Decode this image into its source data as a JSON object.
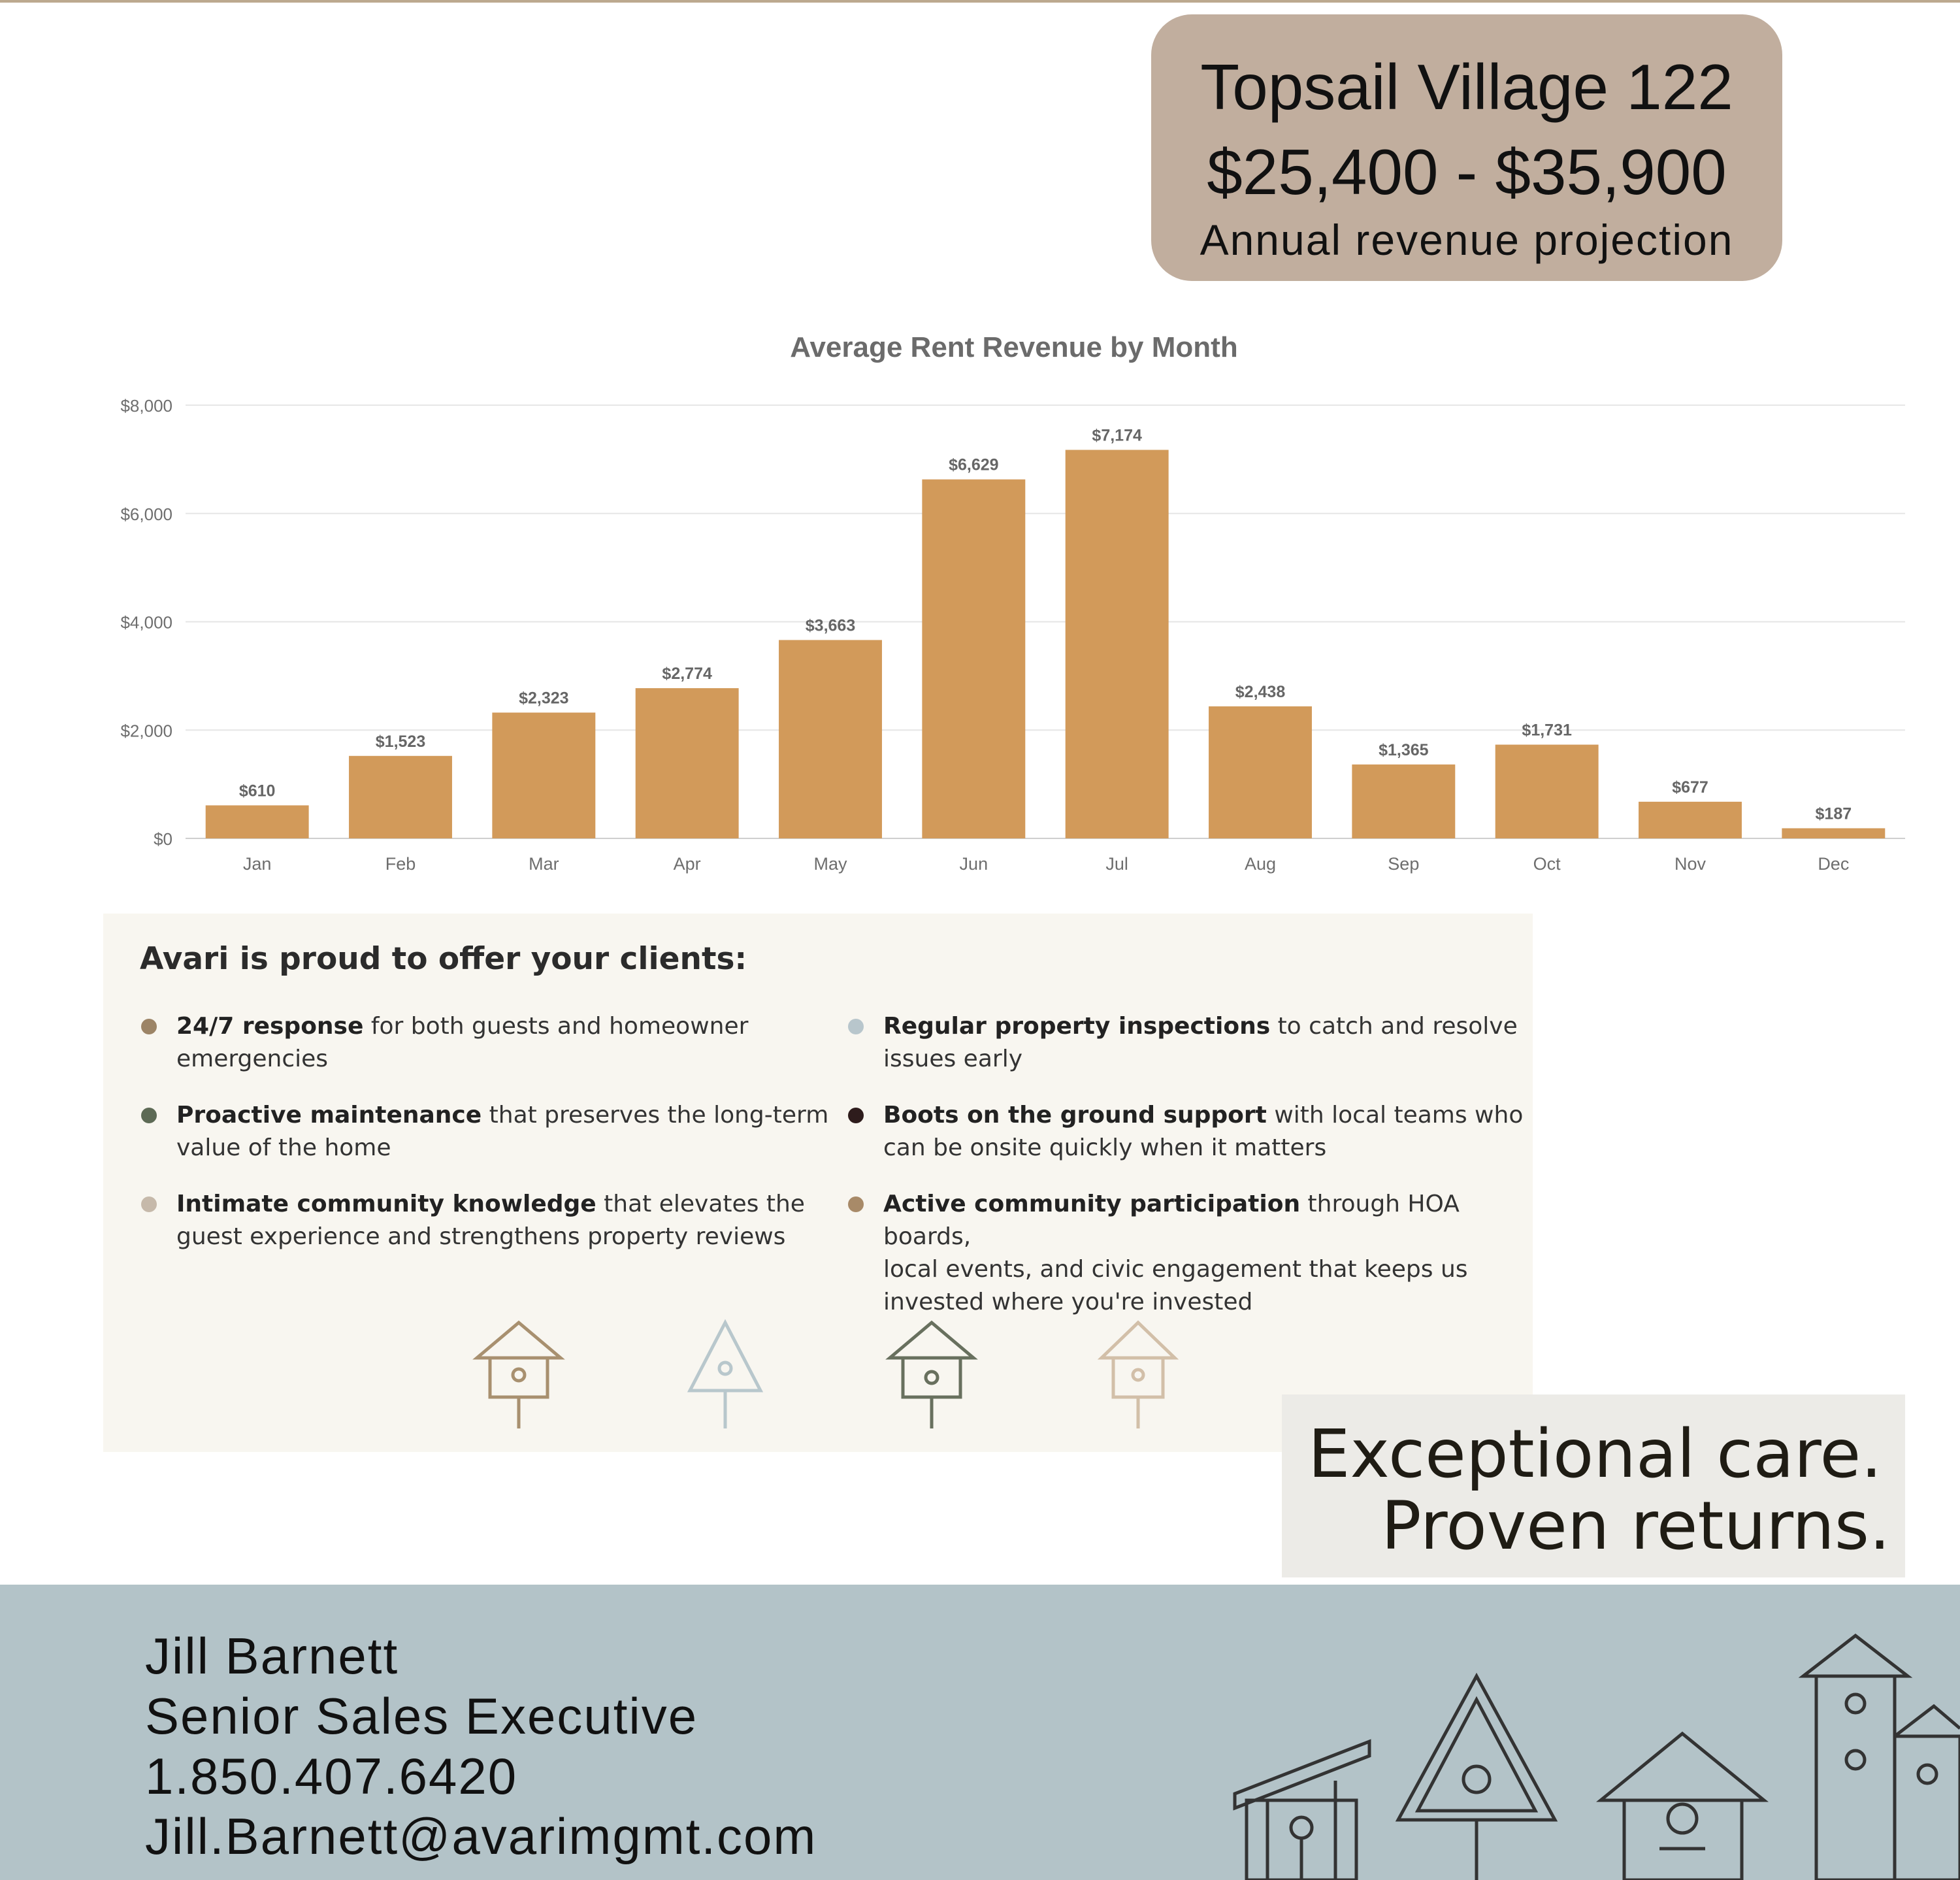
{
  "header": {
    "property": "Topsail Village 122",
    "revenue_range": "$25,400 - $35,900",
    "subtitle": "Annual revenue projection"
  },
  "chart_data": {
    "type": "bar",
    "title": "Average Rent Revenue by Month",
    "categories": [
      "Jan",
      "Feb",
      "Mar",
      "Apr",
      "May",
      "Jun",
      "Jul",
      "Aug",
      "Sep",
      "Oct",
      "Nov",
      "Dec"
    ],
    "values": [
      610,
      1523,
      2323,
      2774,
      3663,
      6629,
      7174,
      2438,
      1365,
      1731,
      677,
      187
    ],
    "data_labels": [
      "$610",
      "$1,523",
      "$2,323",
      "$2,774",
      "$3,663",
      "$6,629",
      "$7,174",
      "$2,438",
      "$1,365",
      "$1,731",
      "$677",
      "$187"
    ],
    "y_ticks": [
      "$0",
      "$2,000",
      "$4,000",
      "$6,000",
      "$8,000"
    ],
    "y_tick_values": [
      0,
      2000,
      4000,
      6000,
      8000
    ],
    "ylim": [
      0,
      8000
    ],
    "grid": true,
    "xlabel": "",
    "ylabel": "",
    "bar_color": "#d29a5a"
  },
  "offer": {
    "heading": "Avari is proud to offer your clients:",
    "items": [
      {
        "bold": "24/7 response",
        "rest": " for both guests and homeowner",
        "rest2": "emergencies",
        "color": "#9c8466"
      },
      {
        "bold": "Proactive maintenance",
        "rest": " that preserves the long-term",
        "rest2": "value of the home",
        "color": "#5d6a55"
      },
      {
        "bold": "Intimate community knowledge",
        "rest": " that elevates the",
        "rest2": "guest experience and strengthens property reviews",
        "color": "#c6b9aa"
      },
      {
        "bold": "Regular property inspections",
        "rest": " to catch and resolve",
        "rest2": "issues early",
        "color": "#b8c6cc"
      },
      {
        "bold": "Boots on the ground support",
        "rest": " with local teams who",
        "rest2": "can be onsite quickly when it matters",
        "color": "#2e1c1c"
      },
      {
        "bold": "Active community participation",
        "rest": " through HOA boards,",
        "rest2": "local events, and civic engagement that keeps us",
        "rest3": "invested where you're invested",
        "color": "#a88a68"
      }
    ]
  },
  "slogan": {
    "line1": "Exceptional care.",
    "line2": "Proven returns."
  },
  "contact": {
    "name": "Jill Barnett",
    "title": "Senior Sales Executive",
    "phone": "1.850.407.6420",
    "email": "Jill.Barnett@avarimgmt.com"
  }
}
